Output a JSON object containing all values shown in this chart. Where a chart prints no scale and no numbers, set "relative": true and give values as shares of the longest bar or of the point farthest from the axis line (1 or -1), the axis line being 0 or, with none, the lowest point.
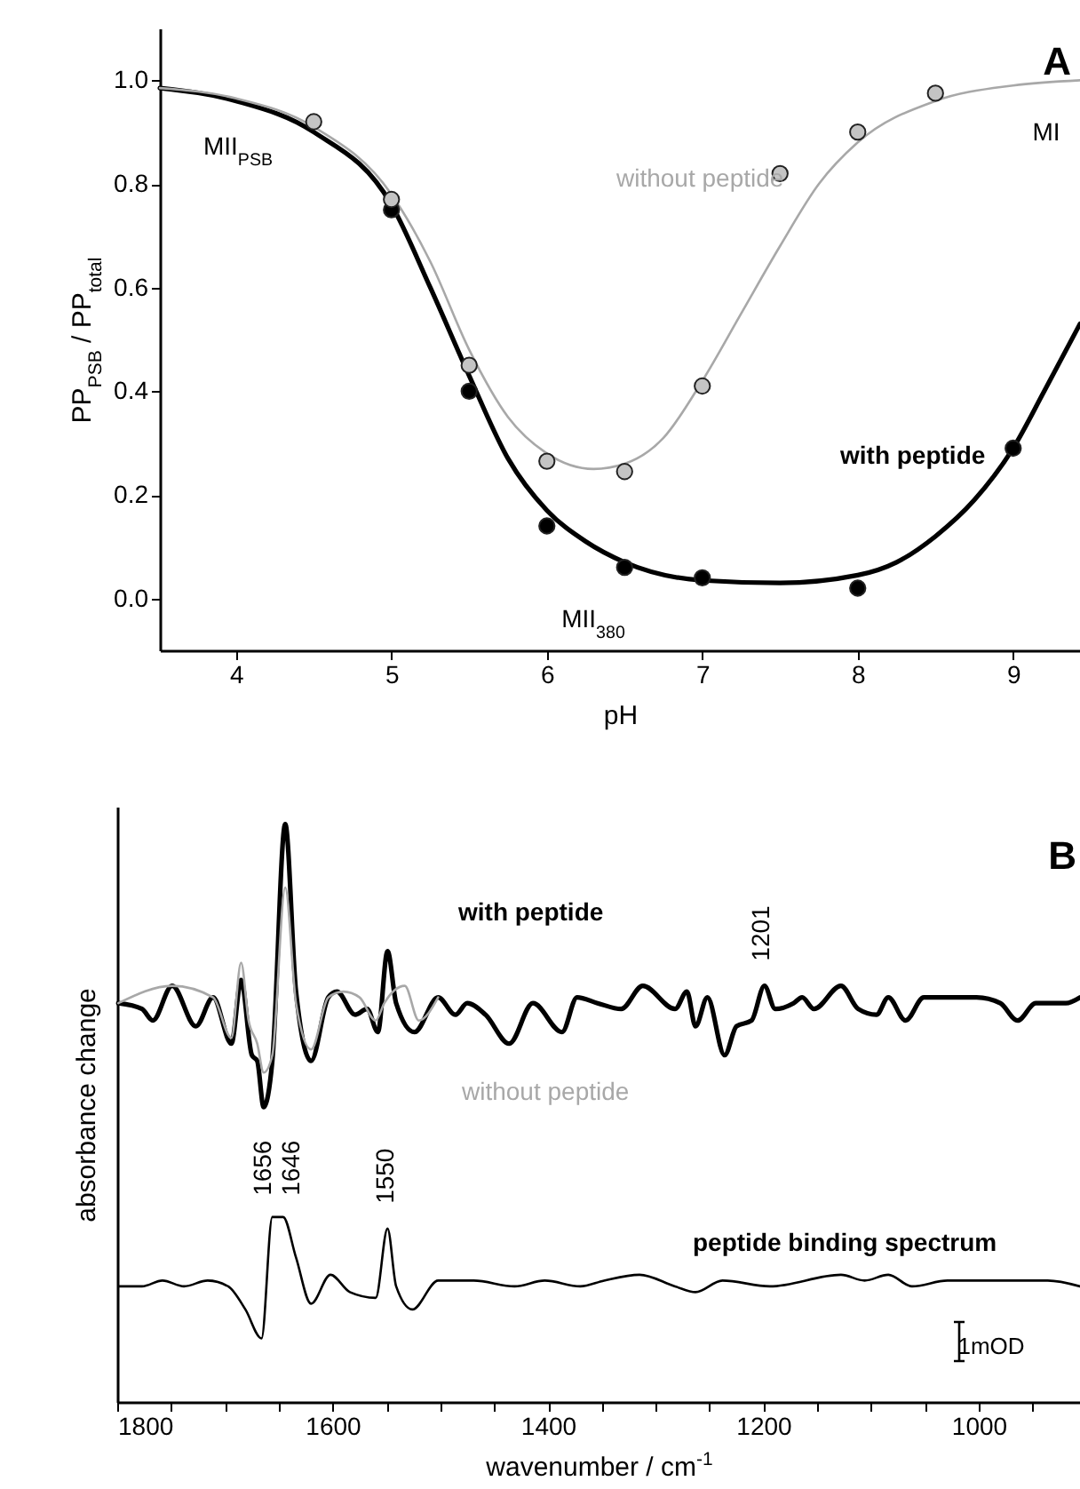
{
  "chart_data": [
    {
      "type": "line",
      "xlabel": "pH",
      "ylabel": "PP$_{PSB}$ / PP$_{total}$",
      "xlim": [
        3.51,
        9.43
      ],
      "ylim": [
        -0.1,
        1.1
      ],
      "xticks": [
        4,
        5,
        6,
        7,
        8,
        9
      ],
      "yticks": [
        {
          "value": 0,
          "label": "0.0"
        },
        {
          "value": 0.2,
          "label": "0.2"
        },
        {
          "value": 0.4,
          "label": "0.4"
        },
        {
          "value": 0.6,
          "label": "0.6"
        },
        {
          "value": 0.8,
          "label": "0.8"
        },
        {
          "value": 1,
          "label": "1.0"
        }
      ],
      "annotations": [
        "A",
        "MII$_{PSB}$",
        "MI",
        "MII$_{380}$"
      ],
      "series": [
        {
          "name": "with peptide",
          "color": "#000000",
          "x": [
            3.51,
            4,
            4.5,
            5,
            5.25,
            5.5,
            5.75,
            6,
            6.25,
            6.5,
            7,
            7.5,
            8,
            8.25,
            8.5,
            8.75,
            9,
            9.2,
            9.43
          ],
          "values": [
            0.985,
            0.96,
            0.9,
            0.76,
            0.6,
            0.43,
            0.27,
            0.17,
            0.11,
            0.07,
            0.035,
            0.03,
            0.045,
            0.07,
            0.12,
            0.19,
            0.29,
            0.4,
            0.53
          ]
        },
        {
          "name": "without peptide",
          "color": "#a8a8a8",
          "x": [
            3.51,
            4,
            4.5,
            5,
            5.25,
            5.5,
            5.75,
            6,
            6.3,
            6.5,
            6.75,
            7,
            7.25,
            7.5,
            7.75,
            8,
            8.5,
            9,
            9.43
          ],
          "values": [
            0.985,
            0.965,
            0.91,
            0.78,
            0.65,
            0.48,
            0.35,
            0.28,
            0.25,
            0.26,
            0.31,
            0.42,
            0.55,
            0.68,
            0.8,
            0.88,
            0.96,
            0.99,
            1.0
          ]
        },
        {
          "type": "scatter",
          "marker": "circle",
          "color": "#000000",
          "x": [
            5,
            5.5,
            6,
            6.5,
            7,
            8,
            9
          ],
          "values": [
            0.75,
            0.4,
            0.14,
            0.06,
            0.04,
            0.02,
            0.29
          ]
        },
        {
          "type": "scatter",
          "marker": "circle",
          "color": "#c4c4c4",
          "x": [
            4.5,
            5,
            5.5,
            6,
            6.5,
            7,
            7.5,
            8,
            8.5
          ],
          "values": [
            0.92,
            0.77,
            0.45,
            0.265,
            0.245,
            0.41,
            0.82,
            0.9,
            0.975
          ]
        }
      ]
    },
    {
      "type": "line",
      "relative": true,
      "xlabel": "wavenumber / cm$^{-1}$",
      "ylabel": "absorbance change",
      "xlim": [
        1800,
        906
      ],
      "xticks": [
        1800,
        {
          "value": 1750,
          "label": null
        },
        {
          "value": 1700,
          "label": null
        },
        {
          "value": 1650,
          "label": null
        },
        1600,
        {
          "value": 1550,
          "label": null
        },
        {
          "value": 1500,
          "label": null
        },
        {
          "value": 1450,
          "label": null
        },
        1400,
        {
          "value": 1350,
          "label": null
        },
        {
          "value": 1300,
          "label": null
        },
        {
          "value": 1250,
          "label": null
        },
        1200,
        {
          "value": 1150,
          "label": null
        },
        {
          "value": 1100,
          "label": null
        },
        {
          "value": 1050,
          "label": null
        },
        1000,
        {
          "value": 950,
          "label": null
        }
      ],
      "annotations": [
        "B",
        "1mOD",
        {
          "text": "1656",
          "x": 1656,
          "y": 0.32
        },
        {
          "text": "1646",
          "x": 1646,
          "y": 0.32
        },
        {
          "text": "1550",
          "x": 1550,
          "y": 0.3
        },
        {
          "text": "1201",
          "x": 1201,
          "y": 0.72
        }
      ],
      "series": [
        {
          "name": "with peptide",
          "color": "#000000",
          "x": [
            1799,
            1777,
            1767,
            1749,
            1727,
            1711,
            1694,
            1685,
            1675,
            1670,
            1664,
            1656,
            1644,
            1634,
            1620,
            1604,
            1596,
            1579,
            1568,
            1558,
            1549,
            1541,
            1524,
            1502,
            1486,
            1475,
            1458,
            1436,
            1414,
            1387,
            1373,
            1354,
            1332,
            1312,
            1282,
            1271,
            1263,
            1252,
            1236,
            1225,
            1211,
            1199,
            1189,
            1172,
            1164,
            1153,
            1128,
            1112,
            1095,
            1084,
            1068,
            1051,
            1024,
            1002,
            980,
            964,
            947,
            919,
            906
          ],
          "values": [
            0.69,
            0.68,
            0.66,
            0.72,
            0.65,
            0.7,
            0.62,
            0.73,
            0.6,
            0.59,
            0.51,
            0.59,
            1.0,
            0.71,
            0.59,
            0.7,
            0.71,
            0.67,
            0.68,
            0.64,
            0.78,
            0.69,
            0.64,
            0.7,
            0.67,
            0.69,
            0.67,
            0.62,
            0.69,
            0.64,
            0.7,
            0.69,
            0.68,
            0.72,
            0.68,
            0.71,
            0.65,
            0.7,
            0.6,
            0.65,
            0.66,
            0.72,
            0.68,
            0.69,
            0.7,
            0.68,
            0.72,
            0.68,
            0.67,
            0.7,
            0.66,
            0.7,
            0.7,
            0.7,
            0.69,
            0.66,
            0.69,
            0.69,
            0.7
          ]
        },
        {
          "name": "without peptide",
          "color": "#a8a8a8",
          "x": [
            1799,
            1749,
            1711,
            1694,
            1685,
            1678,
            1670,
            1664,
            1656,
            1644,
            1634,
            1620,
            1604,
            1590,
            1575,
            1560,
            1552,
            1533,
            1520,
            1502
          ],
          "values": [
            0.69,
            0.72,
            0.7,
            0.63,
            0.76,
            0.66,
            0.62,
            0.57,
            0.6,
            0.89,
            0.69,
            0.61,
            0.7,
            0.71,
            0.7,
            0.66,
            0.69,
            0.72,
            0.66,
            0.7
          ]
        },
        {
          "name": "peptide binding spectrum",
          "color": "#000000",
          "x": [
            1799,
            1777,
            1758,
            1738,
            1716,
            1697,
            1681,
            1666,
            1656,
            1646,
            1634,
            1620,
            1602,
            1584,
            1560,
            1549,
            1541,
            1526,
            1502,
            1469,
            1431,
            1403,
            1370,
            1348,
            1315,
            1282,
            1263,
            1238,
            1194,
            1128,
            1106,
            1084,
            1062,
            1029,
            975,
            936,
            906
          ],
          "values": [
            0.2,
            0.2,
            0.21,
            0.2,
            0.21,
            0.2,
            0.16,
            0.11,
            0.32,
            0.32,
            0.25,
            0.17,
            0.22,
            0.19,
            0.18,
            0.3,
            0.2,
            0.16,
            0.21,
            0.21,
            0.2,
            0.21,
            0.2,
            0.21,
            0.22,
            0.2,
            0.19,
            0.21,
            0.2,
            0.22,
            0.21,
            0.22,
            0.2,
            0.21,
            0.21,
            0.21,
            0.2
          ]
        }
      ]
    }
  ]
}
